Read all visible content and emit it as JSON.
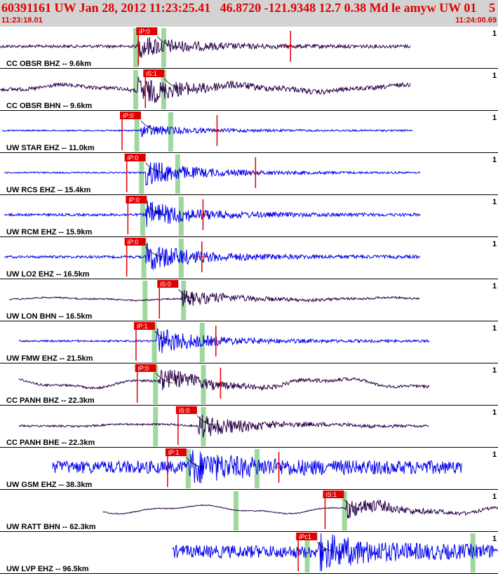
{
  "header": {
    "title": "60391161 UW Jan 28, 2012 11:23:25.41   46.8720 -121.9348 12.7 0.38 Md le amyw UW 01",
    "count": "5",
    "start_time": "11:23:18.01",
    "end_time": "11:24:00.69"
  },
  "colors": {
    "header_bg": "#d3d3d3",
    "header_text": "#e00000",
    "trace_blue": "#0000ee",
    "trace_purple": "#2a004a",
    "pick_red": "#e00000",
    "window_green": "#9ed89e",
    "separator": "#000000"
  },
  "chart_data": {
    "type": "seismogram",
    "x_label_start": "11:23:18.01",
    "x_label_end": "11:24:00.69",
    "time_range_s": [
      0,
      42.68
    ],
    "traces": [
      {
        "label": "CC OBSR BHZ -- 9.6km",
        "scale": "1",
        "color": "purple",
        "data_start": 0,
        "data_end": 35.2,
        "onset": 11.8,
        "amp": 0.45,
        "bg": 0.08,
        "wavy": 0,
        "freq": 28,
        "picks": [
          {
            "label": "iP:0",
            "t": 11.8,
            "kind": "P"
          },
          {
            "t": 24.9,
            "kind": "red-tick"
          }
        ],
        "green": [
          11.6,
          14.0
        ]
      },
      {
        "label": "CC OBSR BHN -- 9.6km",
        "scale": "1",
        "color": "purple",
        "data_start": 0,
        "data_end": 35.2,
        "onset": 11.8,
        "amp": 0.55,
        "bg": 0.1,
        "wavy": 0.15,
        "freq": 24,
        "picks": [
          {
            "label": "iS:1",
            "t": 12.4,
            "kind": "S"
          }
        ],
        "green": [
          11.6,
          14.0
        ]
      },
      {
        "label": "UW STAR EHZ -- 11.0km",
        "scale": "1",
        "color": "blue",
        "data_start": 0.2,
        "data_end": 35.4,
        "onset": 12.1,
        "amp": 0.25,
        "bg": 0.04,
        "wavy": 0,
        "freq": 40,
        "picks": [
          {
            "label": "iP:0",
            "t": 10.4,
            "kind": "P"
          },
          {
            "t": 18.6,
            "kind": "red-tick"
          }
        ],
        "green": [
          11.7,
          14.6
        ]
      },
      {
        "label": "UW RCS EHZ -- 15.4km",
        "scale": "1",
        "color": "blue",
        "data_start": 0.4,
        "data_end": 36.0,
        "onset": 12.5,
        "amp": 0.55,
        "bg": 0.04,
        "wavy": 0,
        "freq": 40,
        "picks": [
          {
            "label": "iP:0",
            "t": 10.8,
            "kind": "P"
          },
          {
            "t": 21.9,
            "kind": "red-tick"
          }
        ],
        "green": [
          12.1,
          15.2
        ]
      },
      {
        "label": "UW RCM EHZ -- 15.9km",
        "scale": "1",
        "color": "blue",
        "data_start": 0.4,
        "data_end": 36.0,
        "onset": 12.5,
        "amp": 0.55,
        "bg": 0.07,
        "wavy": 0,
        "freq": 40,
        "picks": [
          {
            "label": "iP:0",
            "t": 10.9,
            "kind": "P"
          },
          {
            "t": 17.4,
            "kind": "red-tick"
          }
        ],
        "green": [
          12.2,
          15.5
        ]
      },
      {
        "label": "UW LO2 EHZ -- 16.5km",
        "scale": "1",
        "color": "blue",
        "data_start": 0.4,
        "data_end": 36.0,
        "onset": 12.5,
        "amp": 0.6,
        "bg": 0.07,
        "wavy": 0,
        "freq": 40,
        "picks": [
          {
            "label": "iP:0",
            "t": 10.8,
            "kind": "P"
          },
          {
            "t": 17.3,
            "kind": "red-tick"
          }
        ],
        "green": [
          12.3,
          15.5
        ]
      },
      {
        "label": "UW LON BHN -- 16.5km",
        "scale": "1",
        "color": "purple",
        "data_start": 0.8,
        "data_end": 36.0,
        "onset": 15.6,
        "amp": 0.35,
        "bg": 0.04,
        "wavy": 0.06,
        "freq": 24,
        "picks": [
          {
            "label": "iS:0",
            "t": 13.6,
            "kind": "S"
          }
        ],
        "green": [
          12.4,
          15.7
        ]
      },
      {
        "label": "UW FMW EHZ -- 21.5km",
        "scale": "1",
        "color": "blue",
        "data_start": 1.6,
        "data_end": 36.8,
        "onset": 13.4,
        "amp": 0.55,
        "bg": 0.05,
        "wavy": 0,
        "freq": 40,
        "picks": [
          {
            "label": "iP:1",
            "t": 11.6,
            "kind": "P"
          },
          {
            "t": 18.5,
            "kind": "red-tick"
          }
        ],
        "green": [
          13.2,
          17.3
        ]
      },
      {
        "label": "CC PANH BHZ -- 22.3km",
        "scale": "1",
        "color": "purple",
        "data_start": 1.6,
        "data_end": 36.8,
        "onset": 13.6,
        "amp": 0.45,
        "bg": 0.06,
        "wavy": 0.22,
        "freq": 24,
        "picks": [
          {
            "label": "iP:0",
            "t": 11.7,
            "kind": "P"
          },
          {
            "t": 18.9,
            "kind": "red-tick"
          }
        ],
        "green": [
          13.3,
          17.4
        ]
      },
      {
        "label": "CC PANH BHE -- 22.3km",
        "scale": "1",
        "color": "purple",
        "data_start": 1.6,
        "data_end": 36.8,
        "onset": 17.0,
        "amp": 0.5,
        "bg": 0.05,
        "wavy": 0.06,
        "freq": 24,
        "picks": [
          {
            "label": "iS:0",
            "t": 15.2,
            "kind": "S"
          }
        ],
        "green": [
          13.3,
          17.4
        ]
      },
      {
        "label": "UW GSM EHZ -- 38.3km",
        "scale": "1",
        "color": "blue",
        "data_start": 4.5,
        "data_end": 39.6,
        "onset": 16.2,
        "amp": 0.55,
        "bg": 0.35,
        "wavy": 0,
        "freq": 40,
        "picks": [
          {
            "label": "iP:1",
            "t": 14.3,
            "kind": "P"
          },
          {
            "t": 23.9,
            "kind": "red-tick"
          }
        ],
        "green": [
          16.1,
          22.0
        ]
      },
      {
        "label": "UW RATT BHN -- 62.3km",
        "scale": "1",
        "color": "purple",
        "data_start": 8.8,
        "data_end": 44.0,
        "onset": 29.6,
        "amp": 0.45,
        "bg": 0.03,
        "wavy": 0.18,
        "freq": 20,
        "picks": [
          {
            "label": "iS:1",
            "t": 27.8,
            "kind": "S"
          }
        ],
        "green": [
          20.2,
          29.5
        ]
      },
      {
        "label": "UW LVP EHZ -- 96.5km",
        "scale": "1",
        "color": "blue",
        "data_start": 14.8,
        "data_end": 50.0,
        "onset": 27.3,
        "amp": 0.6,
        "bg": 0.35,
        "wavy": 0,
        "freq": 40,
        "picks": [
          {
            "label": "iPc1",
            "t": 25.5,
            "kind": "P"
          }
        ],
        "green": [
          26.3,
          40.5
        ]
      }
    ]
  }
}
